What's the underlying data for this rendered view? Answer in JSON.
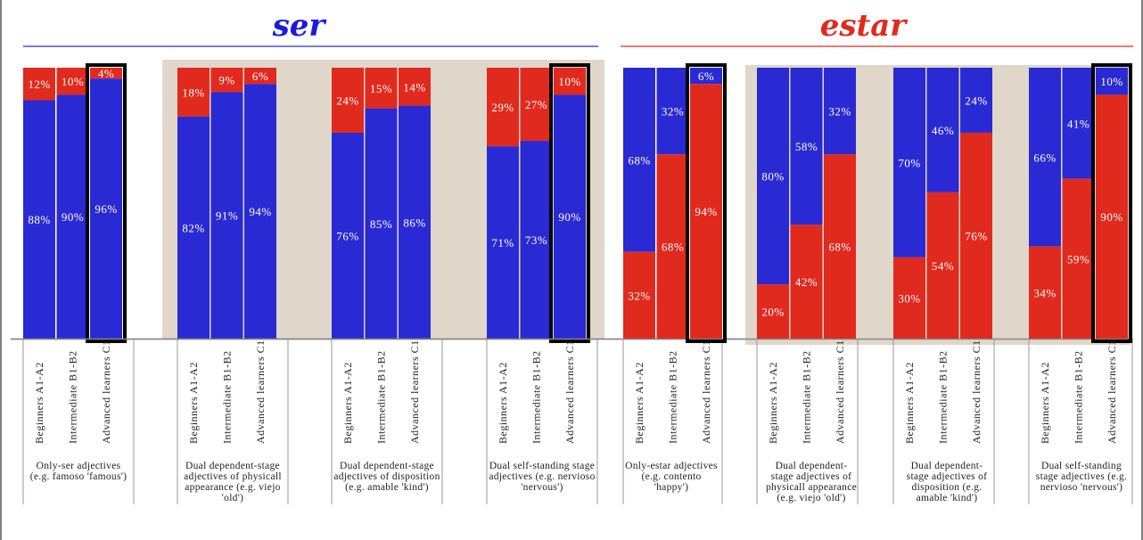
{
  "chart_data": [
    {
      "type": "bar",
      "stacked": "100%",
      "title": "ser",
      "ylim": [
        0,
        100
      ],
      "colors": {
        "ser": "#2a2ad4",
        "estar": "#e12a1e",
        "title": "#1a1adf",
        "band": "#e0d6ca",
        "frame": "#000000"
      },
      "groups": [
        {
          "label": "Only-ser adjectives (e.g. famoso 'famous')",
          "label_lines": [
            "Only-ser adjectives",
            "(e.g. famoso 'famous')"
          ],
          "shaded": false,
          "highlight_index": 2,
          "categories": [
            "Beginners A1-A2",
            "Intermediate B1-B2",
            "Advanced learners C1"
          ],
          "ser": [
            88,
            90,
            96
          ],
          "estar": [
            12,
            10,
            4
          ],
          "ser_labels": [
            "88%",
            "90%",
            "96%"
          ],
          "estar_labels": [
            "12%",
            "10%",
            "4%"
          ]
        },
        {
          "label": "Dual dependent-stage adjectives of physicall appearance (e.g. viejo 'old')",
          "label_lines": [
            "Dual dependent-stage",
            "adjectives of physicall",
            "appearance (e.g. viejo",
            "'old')"
          ],
          "shaded": true,
          "highlight_index": null,
          "categories": [
            "Beginners A1-A2",
            "Intermediate B1-B2",
            "Advanced learners C1"
          ],
          "ser": [
            82,
            91,
            94
          ],
          "estar": [
            18,
            9,
            6
          ],
          "ser_labels": [
            "82%",
            "91%",
            "94%"
          ],
          "estar_labels": [
            "18%",
            "9%",
            "6%"
          ]
        },
        {
          "label": "Dual dependent-stage adjectives of disposition (e.g. amable 'kind')",
          "label_lines": [
            "Dual dependent-stage",
            "adjectives of disposition",
            "(e.g. amable 'kind')"
          ],
          "shaded": true,
          "highlight_index": null,
          "categories": [
            "Beginners A1-A2",
            "Intermediate B1-B2",
            "Advanced learners C1"
          ],
          "ser": [
            76,
            85,
            86
          ],
          "estar": [
            24,
            15,
            14
          ],
          "ser_labels": [
            "76%",
            "85%",
            "86%"
          ],
          "estar_labels": [
            "24%",
            "15%",
            "14%"
          ]
        },
        {
          "label": "Dual self-standing stage adjectives (e.g. nervioso 'nervous')",
          "label_lines": [
            "Dual self-standing stage",
            "adjectives (e.g. nervioso",
            "'nervous')"
          ],
          "shaded": true,
          "highlight_index": 2,
          "categories": [
            "Beginners A1-A2",
            "Intermediate B1-B2",
            "Advanced learners C1"
          ],
          "ser": [
            71,
            73,
            90
          ],
          "estar": [
            29,
            27,
            10
          ],
          "ser_labels": [
            "71%",
            "73%",
            "90%"
          ],
          "estar_labels": [
            "29%",
            "27%",
            "10%"
          ]
        }
      ]
    },
    {
      "type": "bar",
      "stacked": "100%",
      "title": "estar",
      "ylim": [
        0,
        100
      ],
      "colors": {
        "ser": "#2a2ad4",
        "estar": "#e12a1e",
        "title": "#e12a1e",
        "band": "#e0d6ca",
        "frame": "#000000"
      },
      "groups": [
        {
          "label": "Only-estar adjectives (e.g. contento 'happy')",
          "label_lines": [
            "Only-estar adjectives",
            "(e.g. contento",
            "'happy')"
          ],
          "shaded": false,
          "highlight_index": 2,
          "categories": [
            "Beginners A1-A2",
            "Intermediate B1-B2",
            "Advanced learners C1"
          ],
          "estar": [
            32,
            68,
            94
          ],
          "ser": [
            68,
            32,
            6
          ],
          "estar_labels": [
            "32%",
            "68%",
            "94%"
          ],
          "ser_labels": [
            "68%",
            "32%",
            "6%"
          ]
        },
        {
          "label": "Dual dependent-stage adjectives of physicall appearance (e.g. viejo 'old')",
          "label_lines": [
            "Dual dependent-",
            "stage adjectives of",
            "physicall appearance",
            "(e.g. viejo 'old')"
          ],
          "shaded": true,
          "highlight_index": null,
          "categories": [
            "Beginners A1-A2",
            "Intermediate B1-B2",
            "Advanced learners C1"
          ],
          "estar": [
            20,
            42,
            68
          ],
          "ser": [
            80,
            58,
            32
          ],
          "estar_labels": [
            "20%",
            "42%",
            "68%"
          ],
          "ser_labels": [
            "80%",
            "58%",
            "32%"
          ]
        },
        {
          "label": "Dual dependent-stage adjectives of disposition (e.g. amable 'kind')",
          "label_lines": [
            "Dual dependent-",
            "stage adjectives of",
            "disposition (e.g.",
            "amable 'kind')"
          ],
          "shaded": true,
          "highlight_index": null,
          "categories": [
            "Beginners A1-A2",
            "Intermediate B1-B2",
            "Advanced learners C1"
          ],
          "estar": [
            30,
            54,
            76
          ],
          "ser": [
            70,
            46,
            24
          ],
          "estar_labels": [
            "30%",
            "54%",
            "76%"
          ],
          "ser_labels": [
            "70%",
            "46%",
            "24%"
          ]
        },
        {
          "label": "Dual self-standing stage adjectives (e.g. nervioso 'nervous')",
          "label_lines": [
            "Dual self-standing",
            "stage adjectives (e.g.",
            "nervioso 'nervous')"
          ],
          "shaded": true,
          "highlight_index": 2,
          "categories": [
            "Beginners A1-A2",
            "Intermediate B1-B2",
            "Advanced learners C1"
          ],
          "estar": [
            34,
            59,
            90
          ],
          "ser": [
            66,
            41,
            10
          ],
          "estar_labels": [
            "34%",
            "59%",
            "90%"
          ],
          "ser_labels": [
            "66%",
            "41%",
            "10%"
          ]
        }
      ]
    }
  ]
}
